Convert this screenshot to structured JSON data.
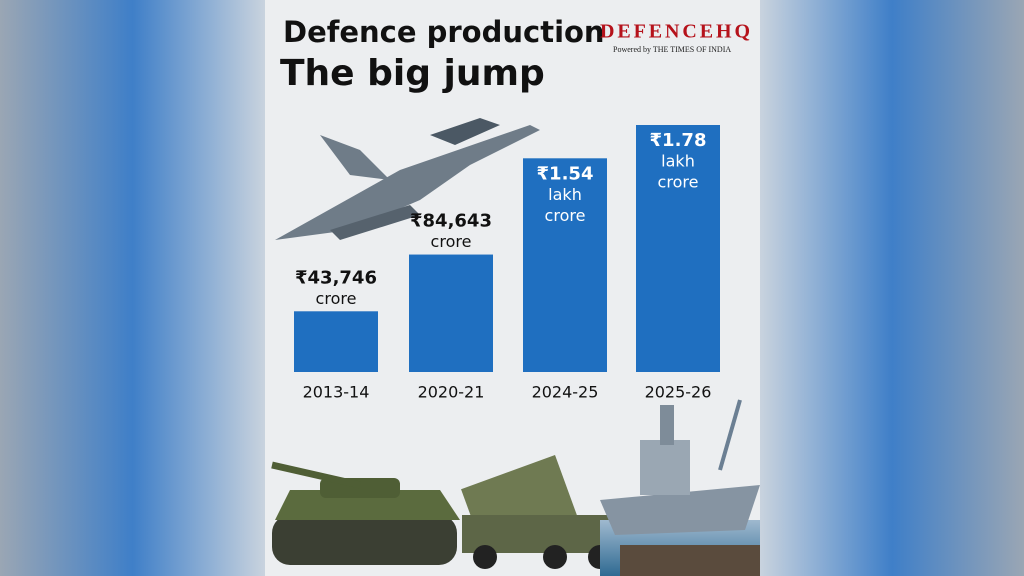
{
  "chart_data": {
    "type": "bar",
    "title": "Defence production",
    "subtitle": "The big jump",
    "brand": "DEFENCEHQ",
    "brand_tagline": "Powered by THE TIMES OF INDIA",
    "categories": [
      "2013-14",
      "2020-21",
      "2024-25",
      "2025-26"
    ],
    "values": [
      43746,
      84643,
      154000,
      178000
    ],
    "value_labels": [
      [
        "₹43,746",
        "crore"
      ],
      [
        "₹84,643",
        "crore"
      ],
      [
        "₹1.54",
        "lakh",
        "crore"
      ],
      [
        "₹1.78",
        "lakh",
        "crore"
      ]
    ],
    "color": "#1f6fc0"
  }
}
